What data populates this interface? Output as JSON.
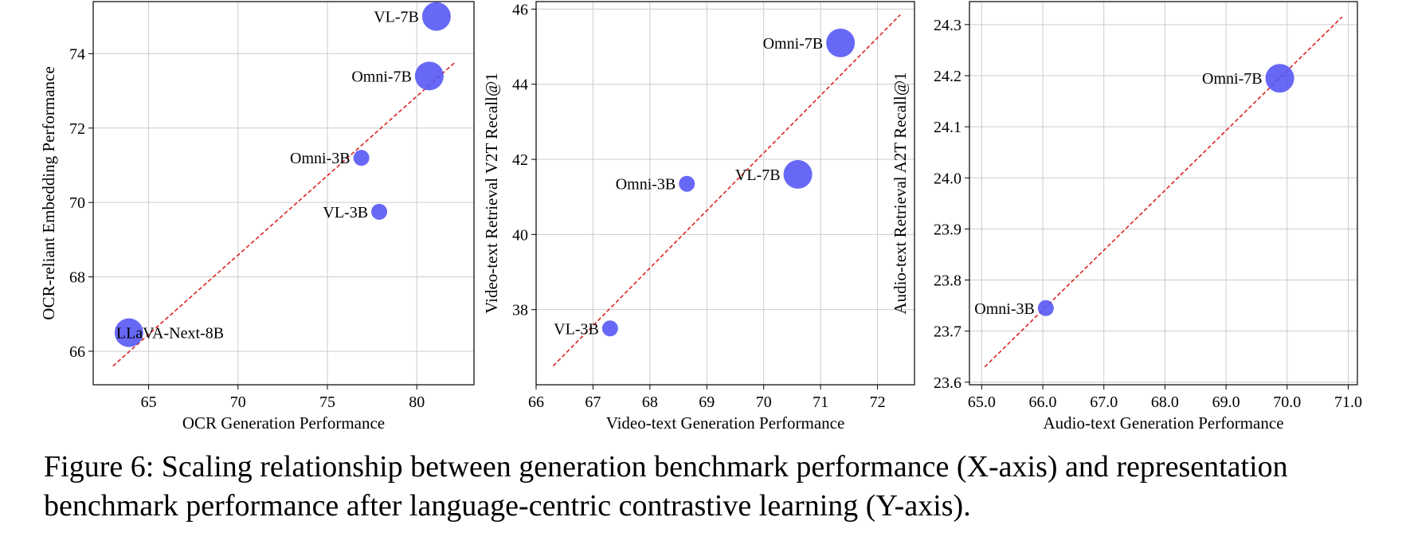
{
  "chart_data": [
    {
      "type": "scatter",
      "xlabel": "OCR Generation Performance",
      "ylabel": "OCR-reliant Embedding Performance",
      "xlim": [
        61.9,
        83.2
      ],
      "ylim": [
        65.1,
        75.4
      ],
      "xticks": [
        65,
        70,
        75,
        80
      ],
      "yticks": [
        66,
        68,
        70,
        72,
        74
      ],
      "grid": true,
      "points": [
        {
          "label": "VL-7B",
          "x": 81.1,
          "y": 75.0,
          "size": "large"
        },
        {
          "label": "Omni-7B",
          "x": 80.7,
          "y": 73.4,
          "size": "large"
        },
        {
          "label": "Omni-3B",
          "x": 76.9,
          "y": 71.2,
          "size": "small"
        },
        {
          "label": "VL-3B",
          "x": 77.9,
          "y": 69.75,
          "size": "small"
        },
        {
          "label": "LLaVA-Next-8B",
          "x": 63.9,
          "y": 66.5,
          "size": "large"
        }
      ],
      "trendline": {
        "x": [
          63.0,
          82.1
        ],
        "y": [
          65.6,
          73.75
        ],
        "style": "dashed",
        "color": "#dd2222"
      }
    },
    {
      "type": "scatter",
      "xlabel": "Video-text Generation Performance",
      "ylabel": "Video-text Retrieval V2T Recall@1",
      "xlim": [
        66.0,
        72.65
      ],
      "ylim": [
        36.0,
        46.2
      ],
      "xticks": [
        66,
        67,
        68,
        69,
        70,
        71,
        72
      ],
      "yticks": [
        38,
        40,
        42,
        44,
        46
      ],
      "grid": true,
      "points": [
        {
          "label": "Omni-7B",
          "x": 71.35,
          "y": 45.1,
          "size": "large"
        },
        {
          "label": "Omni-3B",
          "x": 68.65,
          "y": 41.35,
          "size": "small"
        },
        {
          "label": "VL-7B",
          "x": 70.6,
          "y": 41.6,
          "size": "large"
        },
        {
          "label": "VL-3B",
          "x": 67.3,
          "y": 37.5,
          "size": "small"
        }
      ],
      "trendline": {
        "x": [
          66.3,
          72.4
        ],
        "y": [
          36.5,
          45.85
        ],
        "style": "dashed",
        "color": "#dd2222"
      }
    },
    {
      "type": "scatter",
      "xlabel": "Audio-text Generation Performance",
      "ylabel": "Audio-text Retrieval A2T Recall@1",
      "xlim": [
        64.8,
        71.15
      ],
      "ylim": [
        23.595,
        24.345
      ],
      "xticks": [
        65,
        66,
        67,
        68,
        69,
        70,
        71
      ],
      "yticks": [
        23.6,
        23.7,
        23.8,
        23.9,
        24.0,
        24.1,
        24.2,
        24.3
      ],
      "grid": true,
      "points": [
        {
          "label": "Omni-7B",
          "x": 69.88,
          "y": 24.195,
          "size": "large"
        },
        {
          "label": "Omni-3B",
          "x": 66.05,
          "y": 23.745,
          "size": "small"
        }
      ],
      "trendline": {
        "x": [
          65.05,
          70.9
        ],
        "y": [
          23.63,
          24.315
        ],
        "style": "dashed",
        "color": "#dd2222"
      }
    }
  ],
  "colors": {
    "point": "#5353f5",
    "trendline": "#dd2222",
    "grid": "#cccccc",
    "axis": "#000000"
  },
  "caption": "Figure 6: Scaling relationship between generation benchmark performance (X-axis) and representation benchmark performance after language-centric contrastive learning (Y-axis)."
}
